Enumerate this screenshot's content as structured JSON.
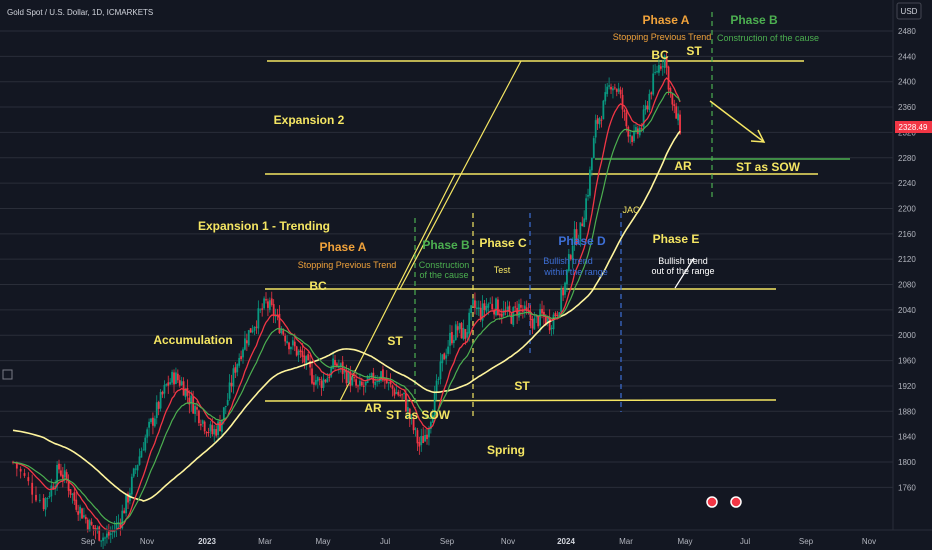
{
  "header": {
    "symbol": "Gold Spot / U.S. Dollar, 1D, ICMARKETS",
    "currency": "USD"
  },
  "chart_data": {
    "type": "candlestick",
    "y_axis": {
      "ticks": [
        1760,
        1800,
        1840,
        1880,
        1920,
        1960,
        2000,
        2040,
        2080,
        2120,
        2160,
        2200,
        2240,
        2280,
        2320,
        2360,
        2400,
        2440,
        2480
      ],
      "range": [
        1710,
        2510
      ]
    },
    "x_axis": {
      "ticks": [
        "Sep",
        "Nov",
        "2023",
        "Mar",
        "May",
        "Jul",
        "Sep",
        "Nov",
        "2024",
        "Mar",
        "May",
        "Jul",
        "Sep",
        "Nov"
      ]
    },
    "last_price": "2328.49",
    "price_path": [
      [
        0,
        1800
      ],
      [
        2,
        1765
      ],
      [
        4,
        1735
      ],
      [
        5,
        1760
      ],
      [
        6,
        1790
      ],
      [
        7,
        1770
      ],
      [
        8,
        1740
      ],
      [
        9,
        1720
      ],
      [
        10,
        1700
      ],
      [
        11,
        1690
      ],
      [
        12,
        1680
      ],
      [
        13,
        1690
      ],
      [
        14,
        1710
      ],
      [
        15,
        1745
      ],
      [
        16,
        1790
      ],
      [
        17,
        1830
      ],
      [
        18,
        1860
      ],
      [
        19,
        1890
      ],
      [
        20,
        1920
      ],
      [
        21,
        1935
      ],
      [
        22,
        1925
      ],
      [
        23,
        1900
      ],
      [
        24,
        1880
      ],
      [
        25,
        1860
      ],
      [
        26,
        1845
      ],
      [
        27,
        1860
      ],
      [
        28,
        1900
      ],
      [
        29,
        1950
      ],
      [
        30,
        1985
      ],
      [
        31,
        2010
      ],
      [
        32,
        2030
      ],
      [
        33,
        2050
      ],
      [
        34,
        2035
      ],
      [
        35,
        2010
      ],
      [
        36,
        1990
      ],
      [
        37,
        1975
      ],
      [
        38,
        1960
      ],
      [
        39,
        1935
      ],
      [
        40,
        1925
      ],
      [
        41,
        1935
      ],
      [
        42,
        1955
      ],
      [
        43,
        1945
      ],
      [
        44,
        1930
      ],
      [
        45,
        1915
      ],
      [
        46,
        1920
      ],
      [
        47,
        1930
      ],
      [
        48,
        1940
      ],
      [
        49,
        1920
      ],
      [
        50,
        1910
      ],
      [
        51,
        1900
      ],
      [
        52,
        1860
      ],
      [
        53,
        1825
      ],
      [
        54,
        1850
      ],
      [
        55,
        1900
      ],
      [
        56,
        1960
      ],
      [
        57,
        1995
      ],
      [
        58,
        2010
      ],
      [
        59,
        2000
      ],
      [
        60,
        2045
      ],
      [
        61,
        2035
      ],
      [
        62,
        2050
      ],
      [
        63,
        2045
      ],
      [
        64,
        2035
      ],
      [
        65,
        2030
      ],
      [
        66,
        2045
      ],
      [
        67,
        2030
      ],
      [
        68,
        2020
      ],
      [
        69,
        2030
      ],
      [
        70,
        2020
      ],
      [
        71,
        2040
      ],
      [
        72,
        2080
      ],
      [
        73,
        2150
      ],
      [
        74,
        2165
      ],
      [
        75,
        2230
      ],
      [
        76,
        2330
      ],
      [
        77,
        2360
      ],
      [
        78,
        2400
      ],
      [
        79,
        2385
      ],
      [
        80,
        2330
      ],
      [
        81,
        2310
      ],
      [
        82,
        2330
      ],
      [
        83,
        2380
      ],
      [
        84,
        2420
      ],
      [
        85,
        2440
      ],
      [
        86,
        2360
      ],
      [
        87,
        2328
      ]
    ],
    "series": [
      {
        "name": "",
        "color": "#4caf50",
        "values": []
      },
      {
        "name": "",
        "color": "#f23645",
        "values": []
      },
      {
        "name": "",
        "color": "#fff59d",
        "values": []
      }
    ],
    "annotations": [
      {
        "text": "Phase A",
        "color": "#f0a23b"
      },
      {
        "text": "Stopping Previous Trend",
        "color": "#f0a23b"
      },
      {
        "text": "Phase B",
        "color": "#4caf50"
      },
      {
        "text": "Construction of the cause",
        "color": "#4caf50"
      },
      {
        "text": "BC",
        "color": "#f5e663"
      },
      {
        "text": "ST",
        "color": "#f5e663"
      },
      {
        "text": "Expansion 2",
        "color": "#f5e663"
      },
      {
        "text": "AR",
        "color": "#f5e663"
      },
      {
        "text": "ST as SOW",
        "color": "#f5e663"
      },
      {
        "text": "JAC",
        "color": "#f5e663"
      },
      {
        "text": "Phase E",
        "color": "#f5e663"
      },
      {
        "text": "Bullish trend",
        "color": "#ffffff"
      },
      {
        "text": "out of the range",
        "color": "#ffffff"
      },
      {
        "text": "Expansion 1 - Trending",
        "color": "#f5e663"
      },
      {
        "text": "Phase A",
        "color": "#f0a23b"
      },
      {
        "text": "Stopping Previous Trend",
        "color": "#f0a23b"
      },
      {
        "text": "Phase B",
        "color": "#4caf50"
      },
      {
        "text": "Construction",
        "color": "#4caf50"
      },
      {
        "text": "of the cause",
        "color": "#4caf50"
      },
      {
        "text": "Phase C",
        "color": "#f5e663"
      },
      {
        "text": "Test",
        "color": "#f5e663"
      },
      {
        "text": "Phase D",
        "color": "#3d6fd6"
      },
      {
        "text": "Bullish trend",
        "color": "#3d6fd6"
      },
      {
        "text": "within the range",
        "color": "#3d6fd6"
      },
      {
        "text": "BC",
        "color": "#f5e663"
      },
      {
        "text": "Accumulation",
        "color": "#f5e663"
      },
      {
        "text": "ST",
        "color": "#f5e663"
      },
      {
        "text": "AR",
        "color": "#f5e663"
      },
      {
        "text": "ST as SOW",
        "color": "#f5e663"
      },
      {
        "text": "ST",
        "color": "#f5e663"
      },
      {
        "text": "Spring",
        "color": "#f5e663"
      }
    ]
  },
  "colors": {
    "background": "#131722",
    "grid": "#2a2e39",
    "axis_text": "#b2b5be",
    "up": "#089981",
    "down": "#f23645",
    "price_tag": "#f23645"
  }
}
